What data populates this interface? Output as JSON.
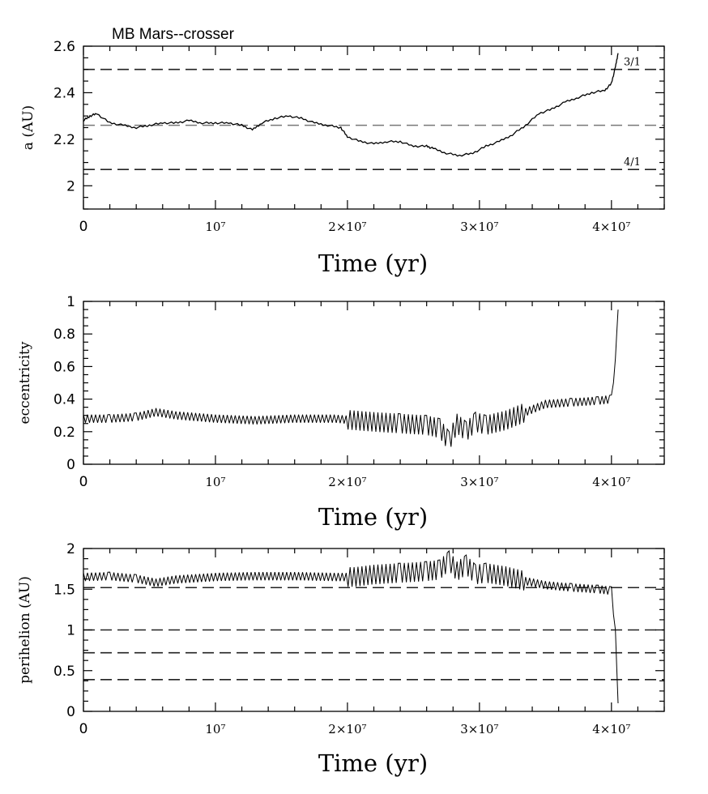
{
  "figure_title": "MB Mars--crosser",
  "chart_data": [
    {
      "type": "line",
      "ylabel": "a (AU)",
      "xlabel": "Time (yr)",
      "xlim": [
        0,
        44000000
      ],
      "ylim": [
        1.9,
        2.6
      ],
      "x_ticks": [
        0,
        10000000,
        20000000,
        30000000,
        40000000
      ],
      "x_tick_labels": [
        "0",
        "10⁷",
        "2×10⁷",
        "3×10⁷",
        "4×10⁷"
      ],
      "y_ticks": [
        2,
        2.2,
        2.4,
        2.6
      ],
      "y_tick_labels": [
        "2",
        "2.2",
        "2.4",
        "2.6"
      ],
      "reference_lines": [
        {
          "y": 2.5,
          "label": "3/1",
          "style": "dark"
        },
        {
          "y": 2.26,
          "label": "",
          "style": "light"
        },
        {
          "y": 2.07,
          "label": "4/1",
          "style": "dark"
        }
      ],
      "series": [
        {
          "x": [
            0,
            500000,
            1000000,
            2000000,
            3000000,
            4000000,
            5000000,
            6000000,
            7000000,
            8000000,
            9000000,
            10000000,
            11000000,
            12000000,
            12800000,
            13500000,
            14500000,
            15500000,
            16500000,
            17500000,
            18500000,
            19500000,
            20000000,
            21000000,
            22000000,
            23000000,
            24000000,
            25000000,
            26000000,
            26500000,
            27500000,
            28500000,
            29500000,
            30500000,
            31500000,
            32500000,
            33500000,
            34500000,
            35500000,
            36500000,
            37500000,
            38500000,
            39500000,
            40000000,
            40300000,
            40500000
          ],
          "y": [
            2.28,
            2.3,
            2.31,
            2.27,
            2.26,
            2.25,
            2.26,
            2.27,
            2.27,
            2.28,
            2.27,
            2.27,
            2.27,
            2.26,
            2.24,
            2.27,
            2.29,
            2.3,
            2.29,
            2.27,
            2.26,
            2.25,
            2.21,
            2.19,
            2.18,
            2.19,
            2.19,
            2.17,
            2.17,
            2.16,
            2.14,
            2.13,
            2.14,
            2.17,
            2.19,
            2.22,
            2.26,
            2.31,
            2.33,
            2.36,
            2.38,
            2.4,
            2.41,
            2.44,
            2.51,
            2.57
          ]
        }
      ]
    },
    {
      "type": "line",
      "ylabel": "eccentricity",
      "xlabel": "Time (yr)",
      "xlim": [
        0,
        44000000
      ],
      "ylim": [
        0,
        1
      ],
      "x_ticks": [
        0,
        10000000,
        20000000,
        30000000,
        40000000
      ],
      "x_tick_labels": [
        "0",
        "10⁷",
        "2×10⁷",
        "3×10⁷",
        "4×10⁷"
      ],
      "y_ticks": [
        0,
        0.2,
        0.4,
        0.6,
        0.8,
        1
      ],
      "y_tick_labels": [
        "0",
        "0.2",
        "0.4",
        "0.6",
        "0.8",
        "1"
      ],
      "series": [
        {
          "x": [
            0,
            2000000,
            4000000,
            5500000,
            7000000,
            10000000,
            13000000,
            16000000,
            19000000,
            20500000,
            22000000,
            24000000,
            26000000,
            27000000,
            27700000,
            28300000,
            29000000,
            29700000,
            30500000,
            32000000,
            33500000,
            35000000,
            37000000,
            39000000,
            40000000,
            40300000,
            40500000
          ],
          "y": [
            0.28,
            0.28,
            0.29,
            0.32,
            0.3,
            0.28,
            0.27,
            0.28,
            0.28,
            0.27,
            0.26,
            0.25,
            0.24,
            0.22,
            0.14,
            0.25,
            0.2,
            0.26,
            0.24,
            0.27,
            0.32,
            0.37,
            0.38,
            0.39,
            0.4,
            0.65,
            0.95
          ]
        }
      ]
    },
    {
      "type": "line",
      "ylabel": "perihelion (AU)",
      "xlabel": "Time (yr)",
      "xlim": [
        0,
        44000000
      ],
      "ylim": [
        0,
        2
      ],
      "x_ticks": [
        0,
        10000000,
        20000000,
        30000000,
        40000000
      ],
      "x_tick_labels": [
        "0",
        "10⁷",
        "2×10⁷",
        "3×10⁷",
        "4×10⁷"
      ],
      "y_ticks": [
        0,
        0.5,
        1,
        1.5,
        2
      ],
      "y_tick_labels": [
        "0",
        "0.5",
        "1",
        "1.5",
        "2"
      ],
      "reference_lines": [
        {
          "y": 1.52,
          "label": "",
          "style": "dark"
        },
        {
          "y": 1.0,
          "label": "",
          "style": "dark"
        },
        {
          "y": 0.72,
          "label": "",
          "style": "dark"
        },
        {
          "y": 0.39,
          "label": "",
          "style": "dark"
        }
      ],
      "series": [
        {
          "x": [
            0,
            2000000,
            4000000,
            5500000,
            7000000,
            10000000,
            13000000,
            16000000,
            19000000,
            20500000,
            22000000,
            24000000,
            26000000,
            27000000,
            27700000,
            28300000,
            29000000,
            29700000,
            30500000,
            32000000,
            33500000,
            35000000,
            37000000,
            39000000,
            40000000,
            40300000,
            40500000
          ],
          "y": [
            1.65,
            1.66,
            1.63,
            1.58,
            1.62,
            1.65,
            1.66,
            1.66,
            1.65,
            1.65,
            1.68,
            1.7,
            1.72,
            1.74,
            1.85,
            1.72,
            1.8,
            1.68,
            1.7,
            1.66,
            1.6,
            1.55,
            1.52,
            1.5,
            1.48,
            1.0,
            0.1
          ]
        }
      ]
    }
  ]
}
